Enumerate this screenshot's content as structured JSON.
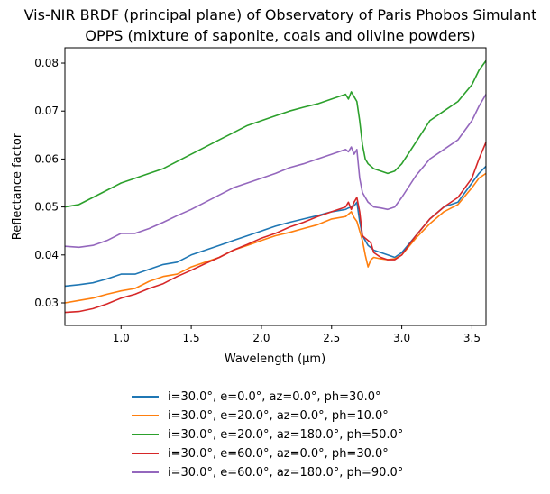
{
  "chart_data": {
    "type": "line",
    "title": "Vis-NIR BRDF (principal plane) of Observatory of Paris Phobos Simulant\nOPPS (mixture of saponite, coals and olivine powders)",
    "xlabel": "Wavelength (μm)",
    "ylabel": "Reflectance factor",
    "xlim": [
      0.6,
      3.6
    ],
    "ylim": [
      0.0253,
      0.0832
    ],
    "x_ticks": [
      "1.0",
      "1.5",
      "2.0",
      "2.5",
      "3.0",
      "3.5"
    ],
    "y_ticks": [
      "0.03",
      "0.04",
      "0.05",
      "0.06",
      "0.07",
      "0.08"
    ],
    "grid": false,
    "legend_position": "below",
    "x": [
      0.6,
      0.7,
      0.8,
      0.9,
      1.0,
      1.1,
      1.2,
      1.3,
      1.4,
      1.5,
      1.6,
      1.7,
      1.8,
      1.9,
      2.0,
      2.1,
      2.2,
      2.3,
      2.4,
      2.5,
      2.6,
      2.62,
      2.64,
      2.66,
      2.68,
      2.7,
      2.72,
      2.74,
      2.76,
      2.78,
      2.8,
      2.85,
      2.9,
      2.95,
      3.0,
      3.1,
      3.2,
      3.3,
      3.4,
      3.5,
      3.55,
      3.6
    ],
    "series": [
      {
        "name": "i=30.0°, e=0.0°, az=0.0°, ph=30.0°",
        "color": "#1f77b4",
        "values": [
          0.0335,
          0.0338,
          0.0342,
          0.035,
          0.036,
          0.036,
          0.037,
          0.038,
          0.0385,
          0.04,
          0.041,
          0.042,
          0.043,
          0.044,
          0.045,
          0.046,
          0.0468,
          0.0475,
          0.0482,
          0.049,
          0.0495,
          0.0498,
          0.05,
          0.0502,
          0.051,
          0.047,
          0.044,
          0.043,
          0.042,
          0.0415,
          0.041,
          0.0405,
          0.04,
          0.0395,
          0.0405,
          0.044,
          0.0475,
          0.05,
          0.051,
          0.055,
          0.057,
          0.0585
        ]
      },
      {
        "name": "i=30.0°, e=20.0°, az=0.0°, ph=10.0°",
        "color": "#ff7f0e",
        "values": [
          0.03,
          0.0305,
          0.031,
          0.0318,
          0.0325,
          0.033,
          0.0345,
          0.0355,
          0.036,
          0.0375,
          0.0385,
          0.0395,
          0.041,
          0.042,
          0.043,
          0.044,
          0.0447,
          0.0455,
          0.0463,
          0.0475,
          0.048,
          0.0485,
          0.049,
          0.0478,
          0.047,
          0.045,
          0.043,
          0.04,
          0.0375,
          0.039,
          0.0395,
          0.0392,
          0.039,
          0.0392,
          0.04,
          0.0435,
          0.0465,
          0.049,
          0.0505,
          0.054,
          0.056,
          0.057
        ]
      },
      {
        "name": "i=30.0°, e=20.0°, az=180.0°, ph=50.0°",
        "color": "#2ca02c",
        "values": [
          0.05,
          0.0505,
          0.052,
          0.0535,
          0.055,
          0.056,
          0.057,
          0.058,
          0.0595,
          0.061,
          0.0625,
          0.064,
          0.0655,
          0.067,
          0.068,
          0.069,
          0.07,
          0.0708,
          0.0715,
          0.0725,
          0.0735,
          0.0725,
          0.074,
          0.073,
          0.072,
          0.068,
          0.063,
          0.06,
          0.059,
          0.0585,
          0.058,
          0.0575,
          0.057,
          0.0575,
          0.059,
          0.0635,
          0.068,
          0.07,
          0.072,
          0.0755,
          0.0785,
          0.0805
        ]
      },
      {
        "name": "i=30.0°, e=60.0°, az=0.0°, ph=30.0°",
        "color": "#d62728",
        "values": [
          0.028,
          0.0282,
          0.0288,
          0.0298,
          0.031,
          0.0318,
          0.033,
          0.034,
          0.0355,
          0.0368,
          0.0382,
          0.0395,
          0.041,
          0.0422,
          0.0435,
          0.0445,
          0.0458,
          0.0468,
          0.048,
          0.049,
          0.05,
          0.051,
          0.0495,
          0.051,
          0.052,
          0.049,
          0.044,
          0.0435,
          0.043,
          0.0425,
          0.0405,
          0.0395,
          0.039,
          0.039,
          0.04,
          0.044,
          0.0475,
          0.05,
          0.052,
          0.056,
          0.06,
          0.0635
        ]
      },
      {
        "name": "i=30.0°, e=60.0°, az=180.0°, ph=90.0°",
        "color": "#9467bd",
        "values": [
          0.0418,
          0.0416,
          0.042,
          0.043,
          0.0445,
          0.0445,
          0.0455,
          0.0468,
          0.0482,
          0.0495,
          0.051,
          0.0525,
          0.054,
          0.055,
          0.056,
          0.057,
          0.0582,
          0.059,
          0.06,
          0.061,
          0.062,
          0.0615,
          0.0625,
          0.061,
          0.062,
          0.056,
          0.053,
          0.052,
          0.051,
          0.0505,
          0.05,
          0.0498,
          0.0495,
          0.05,
          0.052,
          0.0565,
          0.06,
          0.062,
          0.064,
          0.068,
          0.071,
          0.0735
        ]
      }
    ]
  }
}
